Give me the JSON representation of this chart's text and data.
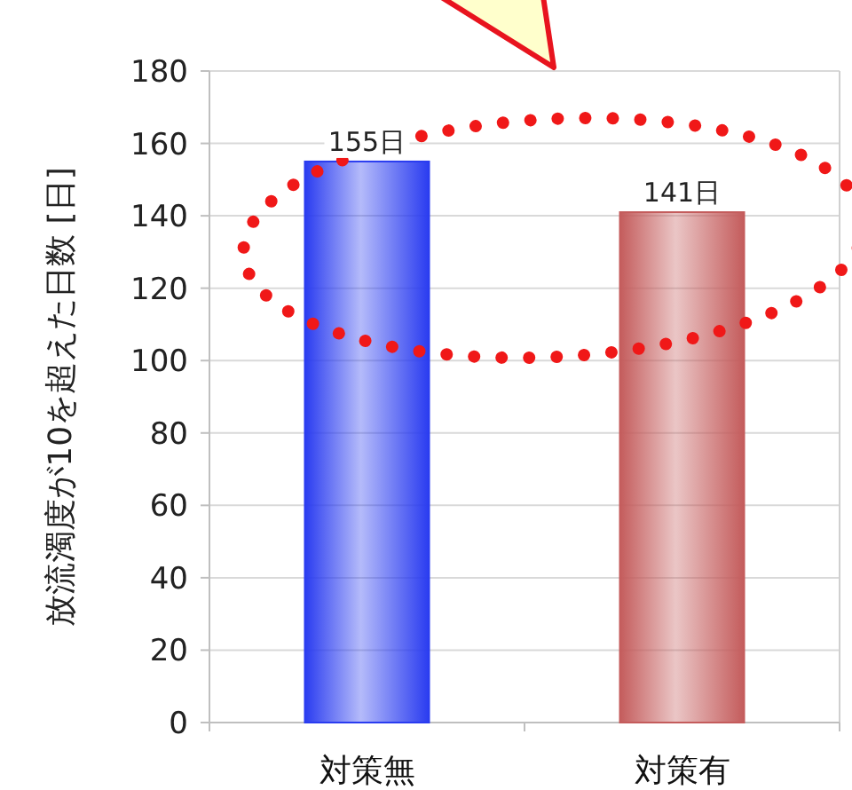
{
  "chart_data": {
    "type": "bar",
    "ylabel": "放流濁度が10を超えた日数 [日]",
    "categories": [
      "対策無",
      "対策有"
    ],
    "values": [
      155,
      141
    ],
    "colors": [
      "#2a3cf0",
      "#c45c5c"
    ],
    "value_labels": [
      "155日",
      "141日"
    ],
    "ylim": [
      0,
      180
    ],
    "yticks": [
      0,
      20,
      40,
      60,
      80,
      100,
      120,
      140,
      160,
      180
    ],
    "grid": "y"
  }
}
